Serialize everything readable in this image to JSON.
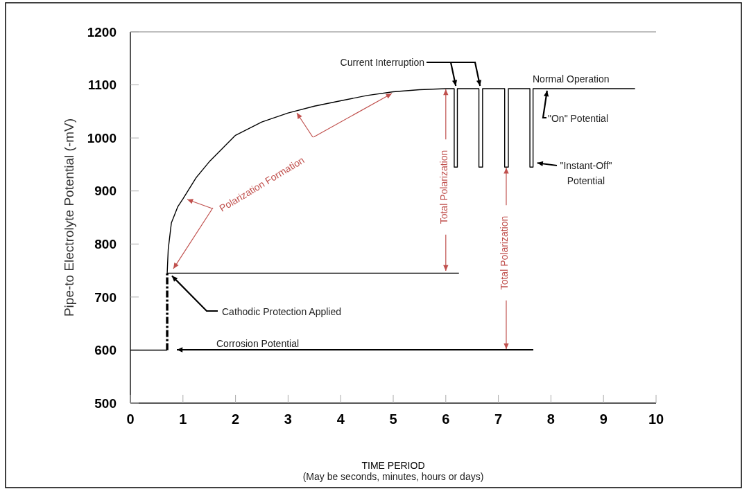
{
  "chart_data": {
    "type": "line",
    "xlabel": "TIME PERIOD",
    "ylabel": "Pipe-to Electrolyte Potential (-mV)",
    "xlim": [
      0,
      10
    ],
    "ylim": [
      500,
      1200
    ],
    "xticks": [
      0,
      1,
      2,
      3,
      4,
      5,
      6,
      7,
      8,
      9,
      10
    ],
    "yticks": [
      500,
      600,
      700,
      800,
      900,
      1000,
      1100,
      1200
    ],
    "grid": false,
    "series": [
      {
        "color": "#000000",
        "x": [
          0,
          0.7
        ],
        "values": [
          600,
          600
        ]
      },
      {
        "color": "#000000",
        "line_style": "dashed",
        "x": [
          0.7,
          0.7
        ],
        "values": [
          600,
          745
        ]
      },
      {
        "color": "#000000",
        "x": [
          0.7,
          0.72,
          0.78,
          0.9,
          1,
          1.25,
          1.5,
          2,
          2.5,
          3,
          3.5,
          4,
          4.5,
          5,
          5.5,
          6,
          6.16,
          6.16,
          6.22,
          6.22,
          6.63,
          6.63,
          6.7,
          6.7,
          7.12,
          7.12,
          7.19,
          7.19,
          7.6,
          7.6,
          7.66,
          7.66,
          9.6
        ],
        "values": [
          745,
          790,
          840,
          870,
          885,
          925,
          955,
          1005,
          1030,
          1047,
          1060,
          1070,
          1080,
          1087,
          1091,
          1093,
          1093,
          945,
          945,
          1093,
          1093,
          945,
          945,
          1093,
          1093,
          945,
          945,
          1093,
          1093,
          945,
          945,
          1093,
          1093
        ]
      },
      {
        "color": "#000000",
        "x": [
          0.7,
          6.25
        ],
        "values": [
          745,
          745
        ]
      }
    ],
    "annotations": [
      {
        "text": "Current Interruption",
        "x": 6.19,
        "y": 1093
      },
      "Normal Operation",
      {
        "text": "\"On\" Potential",
        "x": 7.9,
        "y": 1093
      },
      {
        "text": "\"Instant-Off\"\nPotential",
        "x": 7.66,
        "y": 945
      },
      "Polarization Formation",
      {
        "text": "Total Polarization",
        "x": 6,
        "y": 1093
      },
      {
        "text": "Total Polarization",
        "x": 7.15,
        "y": 945
      },
      {
        "text": "Cathodic Protection Applied",
        "x": 0.79,
        "y": 740
      },
      "Corrosion Potential",
      "(May be seconds, minutes, hours or days)"
    ]
  }
}
